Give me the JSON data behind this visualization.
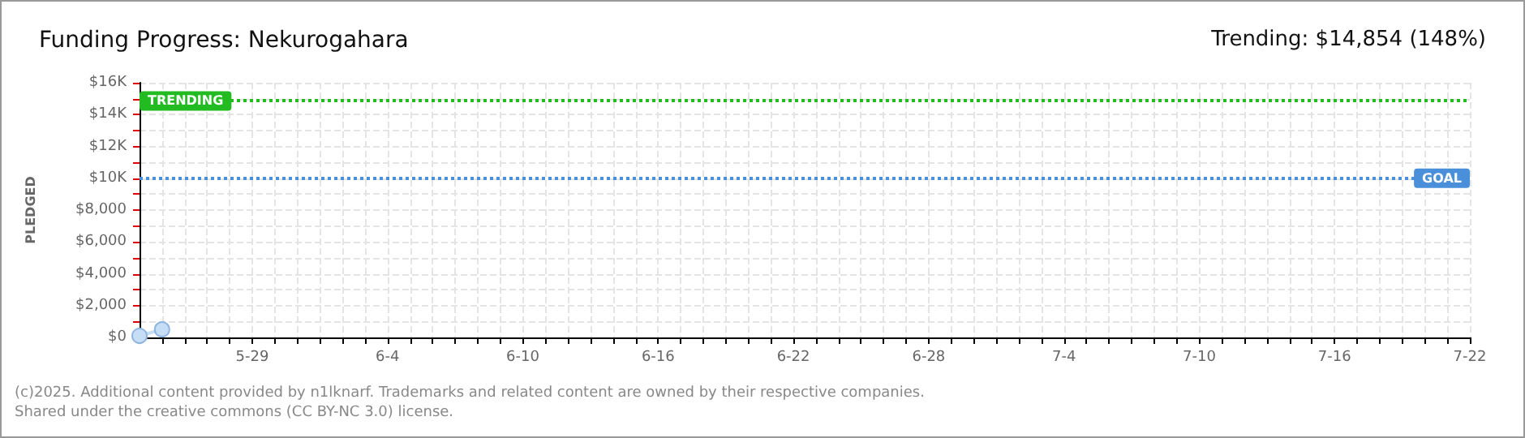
{
  "chart_data": {
    "type": "line",
    "title": "Funding Progress: Nekurogahara",
    "subtitle": "Trending: $14,854 (148%)",
    "ylabel": "PLEDGED",
    "x": [
      "--05-24",
      "--05-25"
    ],
    "series": [
      {
        "color": "#c6ddf6",
        "values": [
          100,
          500
        ]
      }
    ],
    "xlim": [
      "--05-24",
      "--07-22"
    ],
    "xticks": [
      {
        "value": "--05-24",
        "label": null
      },
      {
        "value": "--05-25",
        "label": null
      },
      {
        "value": "--05-26",
        "label": null
      },
      {
        "value": "--05-27",
        "label": null
      },
      {
        "value": "--05-28",
        "label": null
      },
      {
        "value": "--05-29",
        "label": "5-29"
      },
      {
        "value": "--05-30",
        "label": null
      },
      {
        "value": "--05-31",
        "label": null
      },
      {
        "value": "--06-01",
        "label": null
      },
      {
        "value": "--06-02",
        "label": null
      },
      {
        "value": "--06-03",
        "label": null
      },
      {
        "value": "--06-04",
        "label": "6-4"
      },
      {
        "value": "--06-05",
        "label": null
      },
      {
        "value": "--06-06",
        "label": null
      },
      {
        "value": "--06-07",
        "label": null
      },
      {
        "value": "--06-08",
        "label": null
      },
      {
        "value": "--06-09",
        "label": null
      },
      {
        "value": "--06-10",
        "label": "6-10"
      },
      {
        "value": "--06-11",
        "label": null
      },
      {
        "value": "--06-12",
        "label": null
      },
      {
        "value": "--06-13",
        "label": null
      },
      {
        "value": "--06-14",
        "label": null
      },
      {
        "value": "--06-15",
        "label": null
      },
      {
        "value": "--06-16",
        "label": "6-16"
      },
      {
        "value": "--06-17",
        "label": null
      },
      {
        "value": "--06-18",
        "label": null
      },
      {
        "value": "--06-19",
        "label": null
      },
      {
        "value": "--06-20",
        "label": null
      },
      {
        "value": "--06-21",
        "label": null
      },
      {
        "value": "--06-22",
        "label": "6-22"
      },
      {
        "value": "--06-23",
        "label": null
      },
      {
        "value": "--06-24",
        "label": null
      },
      {
        "value": "--06-25",
        "label": null
      },
      {
        "value": "--06-26",
        "label": null
      },
      {
        "value": "--06-27",
        "label": null
      },
      {
        "value": "--06-28",
        "label": "6-28"
      },
      {
        "value": "--06-29",
        "label": null
      },
      {
        "value": "--06-30",
        "label": null
      },
      {
        "value": "--07-01",
        "label": null
      },
      {
        "value": "--07-02",
        "label": null
      },
      {
        "value": "--07-03",
        "label": null
      },
      {
        "value": "--07-04",
        "label": "7-4"
      },
      {
        "value": "--07-05",
        "label": null
      },
      {
        "value": "--07-06",
        "label": null
      },
      {
        "value": "--07-07",
        "label": null
      },
      {
        "value": "--07-08",
        "label": null
      },
      {
        "value": "--07-09",
        "label": null
      },
      {
        "value": "--07-10",
        "label": "7-10"
      },
      {
        "value": "--07-11",
        "label": null
      },
      {
        "value": "--07-12",
        "label": null
      },
      {
        "value": "--07-13",
        "label": null
      },
      {
        "value": "--07-14",
        "label": null
      },
      {
        "value": "--07-15",
        "label": null
      },
      {
        "value": "--07-16",
        "label": "7-16"
      },
      {
        "value": "--07-17",
        "label": null
      },
      {
        "value": "--07-18",
        "label": null
      },
      {
        "value": "--07-19",
        "label": null
      },
      {
        "value": "--07-20",
        "label": null
      },
      {
        "value": "--07-21",
        "label": null
      },
      {
        "value": "--07-22",
        "label": "7-22"
      }
    ],
    "ylim": [
      0,
      16000
    ],
    "yticks": [
      {
        "value": 0,
        "label": "$0"
      },
      {
        "value": 1000,
        "label": null
      },
      {
        "value": 2000,
        "label": "$2,000"
      },
      {
        "value": 3000,
        "label": null
      },
      {
        "value": 4000,
        "label": "$4,000"
      },
      {
        "value": 5000,
        "label": null
      },
      {
        "value": 6000,
        "label": "$6,000"
      },
      {
        "value": 7000,
        "label": null
      },
      {
        "value": 8000,
        "label": "$8,000"
      },
      {
        "value": 9000,
        "label": null
      },
      {
        "value": 10000,
        "label": "$10K"
      },
      {
        "value": 11000,
        "label": null
      },
      {
        "value": 12000,
        "label": "$12K"
      },
      {
        "value": 13000,
        "label": null
      },
      {
        "value": 14000,
        "label": "$14K"
      },
      {
        "value": 15000,
        "label": null
      },
      {
        "value": 16000,
        "label": "$16K"
      }
    ],
    "ref_lines": [
      {
        "axis": "y",
        "value": 10000,
        "label": "GOAL",
        "color": "#4a8fd9",
        "line_style": "dotted"
      },
      {
        "axis": "y",
        "value": 14854,
        "label": "TRENDING",
        "color": "#22bb22",
        "line_style": "dotted"
      }
    ],
    "grid": true,
    "marker": "circle",
    "line_style": "solid",
    "annotations": [
      "(c)2025. Additional content provided by n1lknarf. Trademarks and related content are owned by their respective companies.",
      "Shared under the creative commons (CC BY-NC 3.0) license."
    ]
  }
}
